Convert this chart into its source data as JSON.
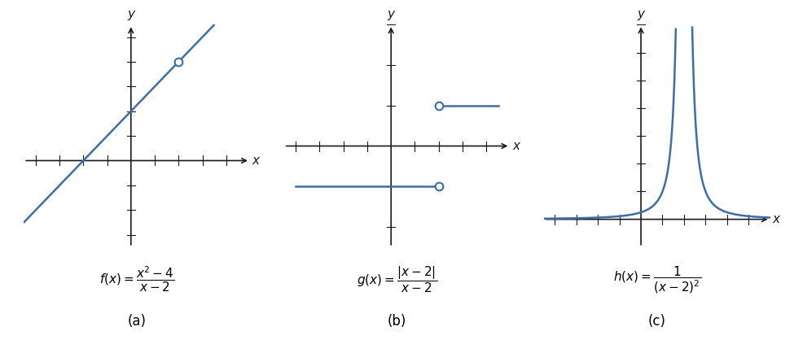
{
  "line_color": "#3d6ea8",
  "bg_color": "#ffffff",
  "axis_color": "#1a1a1a",
  "fig_width": 9.75,
  "fig_height": 4.34,
  "panel_a": {
    "xlim": [
      -4.5,
      5.0
    ],
    "ylim": [
      -3.5,
      5.5
    ],
    "hole_x": 2,
    "hole_y": 4,
    "xlabel": "x",
    "ylabel": "y",
    "formula": "$f(x) = \\dfrac{x^2 - 4}{x - 2}$",
    "label": "(a)"
  },
  "panel_b": {
    "xlim": [
      -4.5,
      5.0
    ],
    "ylim": [
      -2.5,
      3.0
    ],
    "upper_y": 1,
    "lower_y": -1,
    "upper_x_start": 2,
    "upper_x_end": 4.5,
    "lower_x_start": -4.0,
    "lower_x_end": 2,
    "xlabel": "x",
    "ylabel": "y",
    "formula": "$g(x) = \\dfrac{|x - 2|}{x - 2}$",
    "label": "(b)"
  },
  "panel_c": {
    "xlim": [
      -4.5,
      6.0
    ],
    "ylim": [
      -1.0,
      7.0
    ],
    "asymptote_x": 2,
    "xlabel": "x",
    "ylabel": "y",
    "formula": "$h(x) = \\dfrac{1}{(x - 2)^2}$",
    "label": "(c)"
  }
}
